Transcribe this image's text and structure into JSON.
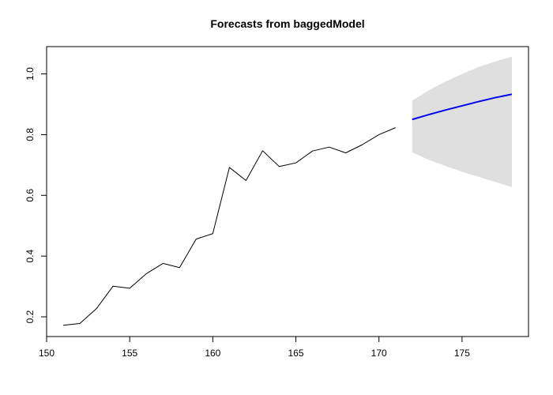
{
  "chart_data": {
    "type": "line",
    "title": "Forecasts from baggedModel",
    "xlabel": "",
    "ylabel": "",
    "xlim": [
      150,
      179
    ],
    "ylim": [
      0.135,
      1.09
    ],
    "x_ticks": [
      150,
      155,
      160,
      165,
      170,
      175
    ],
    "y_ticks": [
      0.2,
      0.4,
      0.6,
      0.8,
      1.0
    ],
    "y_tick_labels": [
      "0.2",
      "0.4",
      "0.6",
      "0.8",
      "1.0"
    ],
    "grid": false,
    "legend": "none",
    "series": [
      {
        "color": "#000000",
        "x": [
          151,
          152,
          153,
          154,
          155,
          156,
          157,
          158,
          159,
          160,
          161,
          162,
          163,
          164,
          165,
          166,
          167,
          168,
          169,
          170,
          171
        ],
        "y": [
          0.172,
          0.178,
          0.227,
          0.301,
          0.294,
          0.342,
          0.376,
          0.362,
          0.456,
          0.474,
          0.692,
          0.649,
          0.747,
          0.695,
          0.707,
          0.746,
          0.759,
          0.74,
          0.767,
          0.8,
          0.823
        ]
      },
      {
        "color": "#0000ee",
        "x": [
          172,
          173,
          174,
          175,
          176,
          177,
          178
        ],
        "y": [
          0.85,
          0.866,
          0.881,
          0.895,
          0.909,
          0.922,
          0.933
        ]
      }
    ],
    "interval": {
      "color": "#dfdfdf",
      "x": [
        172,
        173,
        174,
        175,
        176,
        177,
        178
      ],
      "lower": [
        0.742,
        0.717,
        0.697,
        0.678,
        0.661,
        0.644,
        0.627
      ],
      "upper": [
        0.912,
        0.946,
        0.975,
        1.0,
        1.023,
        1.041,
        1.057
      ]
    }
  }
}
